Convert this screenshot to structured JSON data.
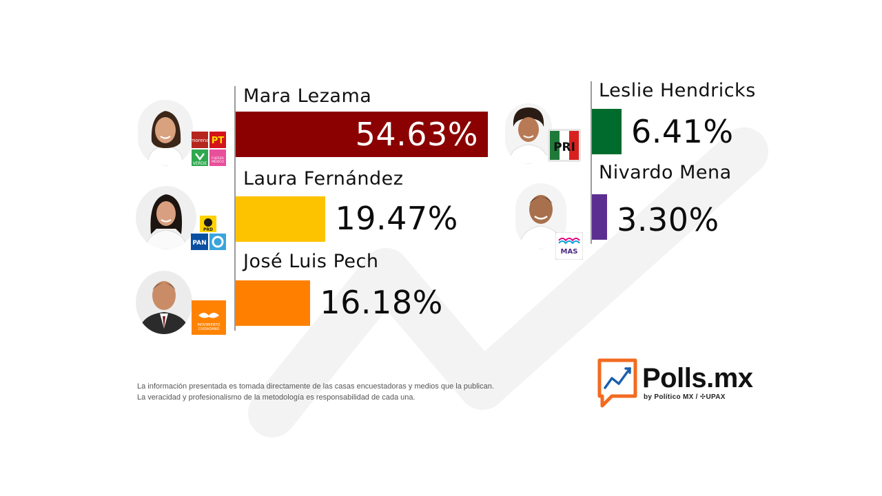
{
  "chart_data": {
    "type": "bar",
    "orientation": "horizontal",
    "series": [
      {
        "name": "Mara Lezama",
        "value": 54.63,
        "label": "54.63%",
        "color": "#8b0000",
        "parties": [
          "morena",
          "PT",
          "VERDE",
          "FUERZA POR MÉXICO"
        ]
      },
      {
        "name": "Laura Fernández",
        "value": 19.47,
        "label": "19.47%",
        "color": "#fdc300",
        "parties": [
          "PRD",
          "PAN",
          "CONFIANZA"
        ]
      },
      {
        "name": "José Luis Pech",
        "value": 16.18,
        "label": "16.18%",
        "color": "#ff8000",
        "parties": [
          "MOVIMIENTO CIUDADANO"
        ]
      },
      {
        "name": "Leslie Hendricks",
        "value": 6.41,
        "label": "6.41%",
        "color": "#006b2d",
        "parties": [
          "PRI"
        ]
      },
      {
        "name": "Nivardo Mena",
        "value": 3.3,
        "label": "3.30%",
        "color": "#5d2e91",
        "parties": [
          "MAS"
        ]
      }
    ]
  },
  "footer": {
    "line1": "La información presentada es tomada directamente de las casas encuestadoras y medios que la publican.",
    "line2": "La veracidad y profesionalismo de la metodología es responsabilidad de cada una."
  },
  "brand": {
    "title": "Polls.mx",
    "byline": "by Político MX  /  ✣UPAX",
    "accent": "#f26b21"
  }
}
